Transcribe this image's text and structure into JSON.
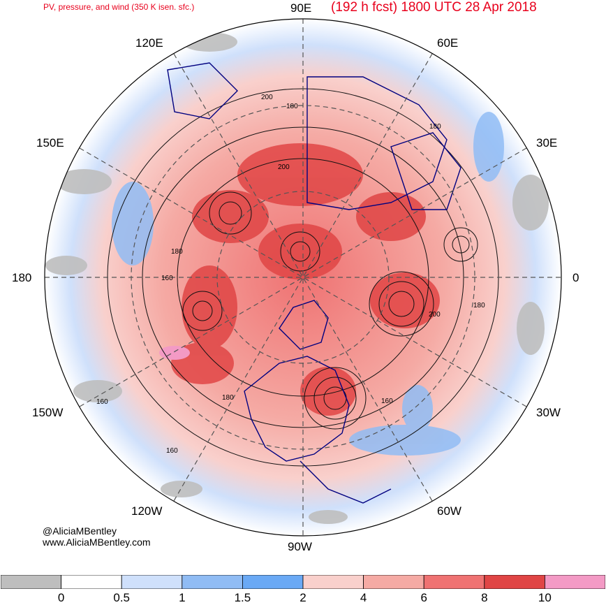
{
  "title_left": "PV, pressure, and wind (350 K isen. sfc.)",
  "title_right": "(192 h fcst) 1800 UTC 28 Apr 2018",
  "longitude_labels": {
    "n90e": "90E",
    "n60e": "60E",
    "n30e": "30E",
    "n0": "0",
    "n30w": "30W",
    "n60w": "60W",
    "n90w": "90W",
    "n120w": "120W",
    "n150w": "150W",
    "n180": "180",
    "n150e": "150E",
    "n120e": "120E"
  },
  "contour_labels": [
    "200",
    "180",
    "200",
    "180",
    "180",
    "160",
    "200",
    "180",
    "160",
    "160",
    "180",
    "160"
  ],
  "credit": {
    "handle": "@AliciaMBentley",
    "website": "www.AliciaMBentley.com"
  },
  "colorbar": {
    "colors": [
      "#bebebe",
      "#ffffff",
      "#cfe0fb",
      "#90bcf4",
      "#6aa9f5",
      "#f9d0cc",
      "#f5aaa4",
      "#ef7272",
      "#e04545",
      "#f39ac5"
    ],
    "tick_labels": [
      "0",
      "0.5",
      "1",
      "1.5",
      "2",
      "4",
      "6",
      "8",
      "10"
    ]
  },
  "map_colors": {
    "high_pv_core": "#e04545",
    "high_pv": "#ef7272",
    "mid_pv": "#f5aaa4",
    "low_pv": "#f9d0cc",
    "blue_light": "#cfe0fb",
    "blue_mid": "#90bcf4",
    "gray": "#bebebe",
    "coast": "#000080"
  }
}
